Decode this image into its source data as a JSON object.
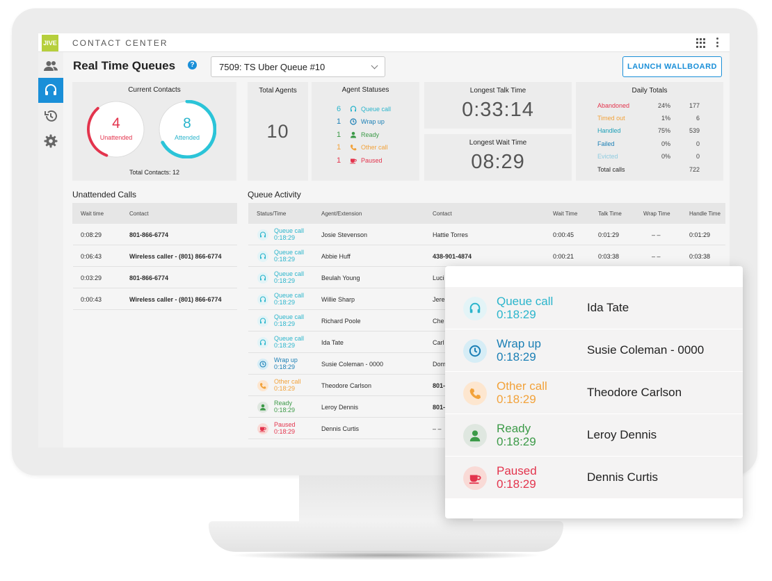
{
  "header": {
    "logo": "JIVE",
    "app_title": "CONTACT CENTER"
  },
  "page": {
    "title": "Real Time Queues",
    "help": "?",
    "queue_selected": "7509: TS Uber Queue #10",
    "launch_label": "LAUNCH WALLBOARD"
  },
  "current_contacts": {
    "title": "Current Contacts",
    "unattended_count": "4",
    "unattended_label": "Unattended",
    "unattended_fraction": 0.33,
    "attended_count": "8",
    "attended_label": "Attended",
    "attended_fraction": 0.67,
    "total": "Total Contacts: 12"
  },
  "total_agents": {
    "title": "Total Agents",
    "value": "10"
  },
  "agent_statuses": {
    "title": "Agent Statuses",
    "items": [
      {
        "count": "6",
        "label": "Queue call"
      },
      {
        "count": "1",
        "label": "Wrap up"
      },
      {
        "count": "1",
        "label": "Ready"
      },
      {
        "count": "1",
        "label": "Other call"
      },
      {
        "count": "1",
        "label": "Paused"
      }
    ]
  },
  "longest_talk": {
    "title": "Longest Talk Time",
    "value": "0:33:14"
  },
  "longest_wait": {
    "title": "Longest Wait Time",
    "value": "08:29"
  },
  "daily_totals": {
    "title": "Daily Totals",
    "rows": [
      {
        "name": "Abandoned",
        "pct": "24%",
        "count": "177"
      },
      {
        "name": "Timed out",
        "pct": "1%",
        "count": "6"
      },
      {
        "name": "Handled",
        "pct": "75%",
        "count": "539"
      },
      {
        "name": "Failed",
        "pct": "0%",
        "count": "0"
      },
      {
        "name": "Evicted",
        "pct": "0%",
        "count": "0"
      }
    ],
    "total_label": "Total calls",
    "total_value": "722"
  },
  "unattended_calls": {
    "title": "Unattended Calls",
    "headers": [
      "Wait time",
      "Contact"
    ],
    "rows": [
      {
        "wait": "0:08:29",
        "contact": "801-866-6774"
      },
      {
        "wait": "0:06:43",
        "contact": "Wireless caller - (801) 866-6774"
      },
      {
        "wait": "0:03:29",
        "contact": "801-866-6774"
      },
      {
        "wait": "0:00:43",
        "contact": "Wireless caller - (801) 866-6774"
      }
    ]
  },
  "queue_activity": {
    "title": "Queue Activity",
    "headers": [
      "Status/Time",
      "Agent/Extension",
      "Contact",
      "Wait Time",
      "Talk Time",
      "Wrap Time",
      "Handle Time"
    ],
    "rows": [
      {
        "status": "Queue call",
        "time": "0:18:29",
        "agent": "Josie Stevenson",
        "contact": "Hattie Torres",
        "wait": "0:00:45",
        "talk": "0:01:29",
        "wrap": "– –",
        "handle": "0:01:29"
      },
      {
        "status": "Queue call",
        "time": "0:18:29",
        "agent": "Abbie Huff",
        "contact": "438-901-4874",
        "wait": "0:00:21",
        "talk": "0:03:38",
        "wrap": "– –",
        "handle": "0:03:38"
      },
      {
        "status": "Queue call",
        "time": "0:18:29",
        "agent": "Beulah Young",
        "contact": "Luci",
        "wait": "",
        "talk": "",
        "wrap": "",
        "handle": ""
      },
      {
        "status": "Queue call",
        "time": "0:18:29",
        "agent": "Willie Sharp",
        "contact": "Jere",
        "wait": "",
        "talk": "",
        "wrap": "",
        "handle": ""
      },
      {
        "status": "Queue call",
        "time": "0:18:29",
        "agent": "Richard Poole",
        "contact": "Che",
        "wait": "",
        "talk": "",
        "wrap": "",
        "handle": ""
      },
      {
        "status": "Queue call",
        "time": "0:18:29",
        "agent": "Ida Tate",
        "contact": "Carl",
        "wait": "",
        "talk": "",
        "wrap": "",
        "handle": ""
      },
      {
        "status": "Wrap up",
        "time": "0:18:29",
        "agent": "Susie Coleman - 0000",
        "contact": "Dom",
        "wait": "",
        "talk": "",
        "wrap": "",
        "handle": ""
      },
      {
        "status": "Other call",
        "time": "0:18:29",
        "agent": "Theodore Carlson",
        "contact": "801-",
        "wait": "",
        "talk": "",
        "wrap": "",
        "handle": ""
      },
      {
        "status": "Ready",
        "time": "0:18:29",
        "agent": "Leroy Dennis",
        "contact": "801-",
        "wait": "",
        "talk": "",
        "wrap": "",
        "handle": ""
      },
      {
        "status": "Paused",
        "time": "0:18:29",
        "agent": "Dennis Curtis",
        "contact": "– –",
        "wait": "",
        "talk": "",
        "wrap": "",
        "handle": ""
      }
    ]
  },
  "zoom": {
    "rows": [
      {
        "status": "Queue call",
        "time": "0:18:29",
        "agent": "Ida Tate"
      },
      {
        "status": "Wrap up",
        "time": "0:18:29",
        "agent": "Susie Coleman - 0000"
      },
      {
        "status": "Other call",
        "time": "0:18:29",
        "agent": "Theodore Carlson"
      },
      {
        "status": "Ready",
        "time": "0:18:29",
        "agent": "Leroy Dennis"
      },
      {
        "status": "Paused",
        "time": "0:18:29",
        "agent": "Dennis Curtis"
      }
    ]
  },
  "colors": {
    "accent": "#1a8fd8",
    "queue_call": "#2bb5cc",
    "wrap_up": "#1a7fb5",
    "ready": "#3c9a48",
    "other_call": "#f2a23a",
    "paused": "#e3344d"
  }
}
